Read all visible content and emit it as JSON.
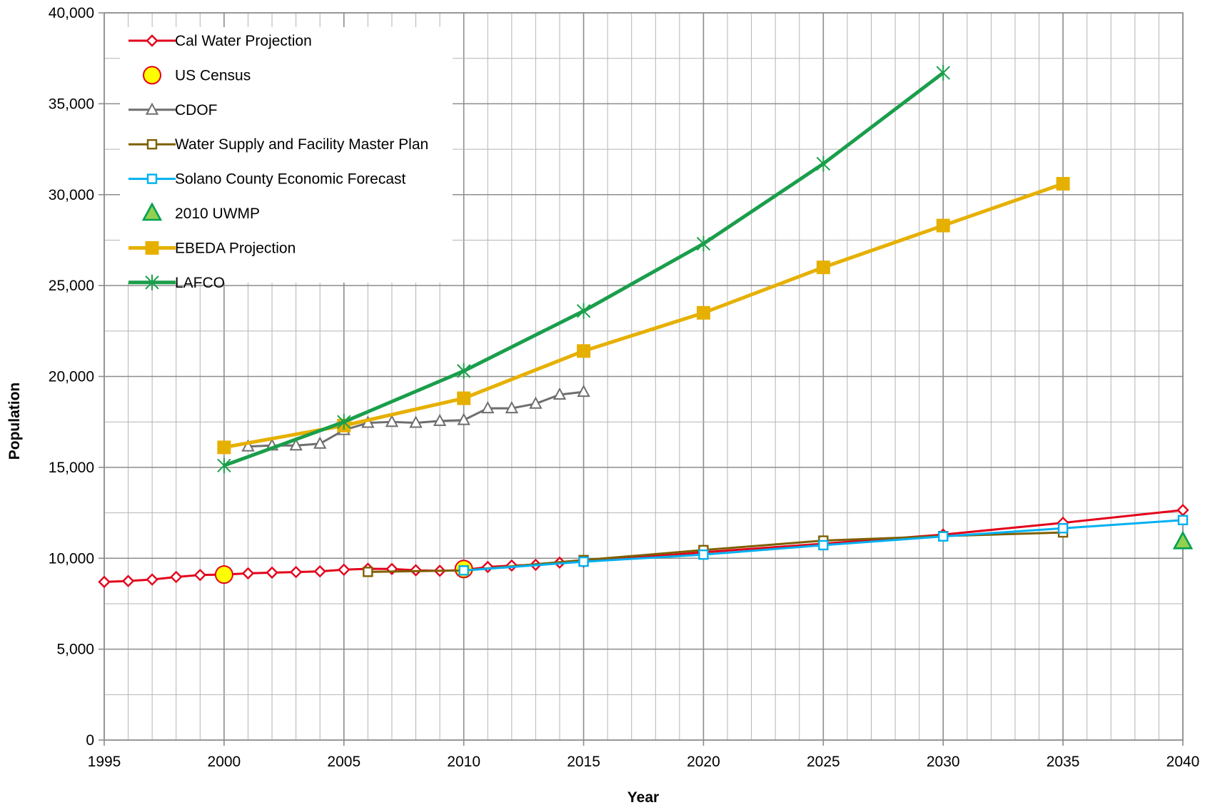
{
  "chart_data": {
    "type": "line",
    "title": "",
    "xlabel": "Year",
    "ylabel": "Population",
    "xlim": [
      1995,
      2040
    ],
    "ylim": [
      0,
      40000
    ],
    "x_ticks": [
      "1995",
      "2000",
      "2005",
      "2010",
      "2015",
      "2020",
      "2025",
      "2030",
      "2035",
      "2040"
    ],
    "y_ticks": [
      "0",
      "5,000",
      "10,000",
      "15,000",
      "20,000",
      "25,000",
      "30,000",
      "35,000",
      "40,000"
    ],
    "x_minor_step": 1,
    "y_minor_step": 2500,
    "grid": true,
    "legend_position": "top-left",
    "series": [
      {
        "name": "Cal Water Projection",
        "color": "#e3001b",
        "line": true,
        "marker": "diamond-open",
        "x": [
          1995,
          1996,
          1997,
          1998,
          1999,
          2000,
          2001,
          2002,
          2003,
          2004,
          2005,
          2006,
          2007,
          2008,
          2009,
          2010,
          2011,
          2012,
          2013,
          2014,
          2015,
          2020,
          2025,
          2030,
          2035,
          2040
        ],
        "y": [
          8700,
          8750,
          8830,
          8970,
          9080,
          9100,
          9170,
          9210,
          9240,
          9280,
          9370,
          9420,
          9410,
          9340,
          9310,
          9350,
          9520,
          9600,
          9640,
          9760,
          9810,
          10330,
          10800,
          11300,
          11950,
          12650
        ]
      },
      {
        "name": "US Census",
        "color": "#ffff00",
        "edge_color": "#e3001b",
        "line": false,
        "marker": "circle-filled",
        "x": [
          2000,
          2010
        ],
        "y": [
          9100,
          9410
        ]
      },
      {
        "name": "CDOF",
        "color": "#6e6e6e",
        "line": true,
        "marker": "triangle-open",
        "x": [
          2001,
          2002,
          2003,
          2004,
          2005,
          2006,
          2007,
          2008,
          2009,
          2010,
          2011,
          2012,
          2013,
          2014,
          2015
        ],
        "y": [
          16150,
          16200,
          16200,
          16300,
          17050,
          17450,
          17500,
          17450,
          17550,
          17600,
          18250,
          18250,
          18500,
          19000,
          19150
        ]
      },
      {
        "name": "Water Supply and Facility Master Plan",
        "color": "#7f5f00",
        "line": true,
        "marker": "square-open",
        "x": [
          2006,
          2010,
          2015,
          2020,
          2025,
          2030,
          2035
        ],
        "y": [
          9250,
          9330,
          9900,
          10450,
          10970,
          11220,
          11420
        ]
      },
      {
        "name": "Solano County Economic Forecast",
        "color": "#00b0f0",
        "line": true,
        "marker": "square-open",
        "x": [
          2010,
          2015,
          2020,
          2025,
          2030,
          2035,
          2040
        ],
        "y": [
          9330,
          9810,
          10200,
          10720,
          11200,
          11650,
          12100
        ]
      },
      {
        "name": "2010 UWMP",
        "color": "#92d050",
        "edge_color": "#00a050",
        "line": false,
        "marker": "triangle-filled",
        "x": [
          2040
        ],
        "y": [
          10900
        ]
      },
      {
        "name": "EBEDA Projection",
        "color": "#e6b000",
        "line": true,
        "marker": "square-filled",
        "x": [
          2000,
          2005,
          2010,
          2015,
          2020,
          2025,
          2030,
          2035
        ],
        "y": [
          16100,
          17300,
          18800,
          21400,
          23500,
          26000,
          28300,
          30600
        ]
      },
      {
        "name": "LAFCO",
        "color": "#1a9e4b",
        "line": true,
        "marker": "star",
        "x": [
          2000,
          2005,
          2010,
          2015,
          2020,
          2025,
          2030
        ],
        "y": [
          15100,
          17500,
          20300,
          23600,
          27300,
          31700,
          36700
        ]
      }
    ]
  }
}
